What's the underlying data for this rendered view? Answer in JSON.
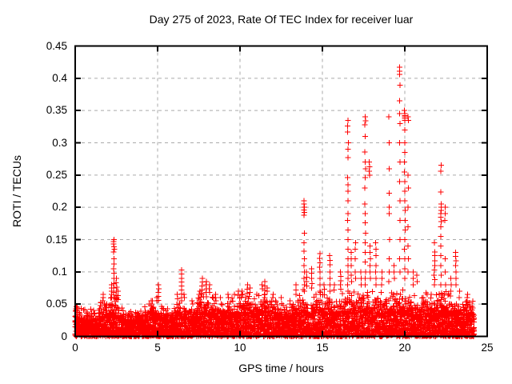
{
  "chart_data": {
    "type": "scatter",
    "title": "Day 275 of 2023, Rate Of TEC Index for receiver luar",
    "xlabel": "GPS time / hours",
    "ylabel": "ROTI / TECUs",
    "xlim": [
      0,
      25
    ],
    "ylim": [
      0,
      0.45
    ],
    "xticks": [
      0,
      5,
      10,
      15,
      20,
      25
    ],
    "xtick_labels": [
      "0",
      "5",
      "10",
      "15",
      "20",
      "25"
    ],
    "yticks": [
      0,
      0.05,
      0.1,
      0.15,
      0.2,
      0.25,
      0.3,
      0.35,
      0.4,
      0.45
    ],
    "ytick_labels": [
      "0",
      "0.05",
      "0.1",
      "0.15",
      "0.2",
      "0.25",
      "0.3",
      "0.35",
      "0.4",
      "0.45"
    ],
    "grid": "dashed gray at major ticks, both axes",
    "legend": "none",
    "marker": "plus",
    "marker_color": "#ff0000",
    "series_name": "ROTI",
    "time_range_h": [
      0,
      24.2
    ],
    "max_value": 0.417,
    "max_value_time_h": 19.7,
    "baseline_band": {
      "t_start": 0,
      "t_step": 0.25,
      "top": [
        0.04,
        0.036,
        0.034,
        0.033,
        0.035,
        0.038,
        0.042,
        0.046,
        0.05,
        0.055,
        0.05,
        0.042,
        0.036,
        0.033,
        0.032,
        0.033,
        0.035,
        0.038,
        0.043,
        0.047,
        0.047,
        0.04,
        0.036,
        0.035,
        0.038,
        0.045,
        0.046,
        0.042,
        0.04,
        0.046,
        0.052,
        0.055,
        0.056,
        0.052,
        0.047,
        0.043,
        0.043,
        0.047,
        0.049,
        0.047,
        0.051,
        0.056,
        0.056,
        0.052,
        0.052,
        0.056,
        0.06,
        0.056,
        0.048,
        0.044,
        0.043,
        0.041,
        0.044,
        0.048,
        0.056,
        0.06,
        0.056,
        0.052,
        0.056,
        0.06,
        0.052,
        0.056,
        0.056,
        0.048,
        0.052,
        0.056,
        0.06,
        0.056,
        0.056,
        0.06,
        0.06,
        0.056,
        0.056,
        0.06,
        0.056,
        0.052,
        0.052,
        0.056,
        0.06,
        0.06,
        0.06,
        0.056,
        0.052,
        0.048,
        0.052,
        0.056,
        0.052,
        0.056,
        0.056,
        0.06,
        0.056,
        0.052,
        0.052,
        0.047,
        0.043,
        0.052,
        0.047,
        0.045
      ]
    },
    "spike_columns": [
      {
        "t": 0.05,
        "ys": [
          0.046,
          0.043,
          0.04
        ]
      },
      {
        "t": 1.55,
        "ys": [
          0.052,
          0.048
        ]
      },
      {
        "t": 1.7,
        "ys": [
          0.065,
          0.06,
          0.055
        ]
      },
      {
        "t": 2.2,
        "ys": [
          0.08,
          0.075,
          0.07,
          0.065,
          0.06
        ]
      },
      {
        "t": 2.35,
        "ys": [
          0.15,
          0.147,
          0.143,
          0.139,
          0.135,
          0.131,
          0.12,
          0.112,
          0.105,
          0.098,
          0.09,
          0.082,
          0.075,
          0.068,
          0.06
        ]
      },
      {
        "t": 2.5,
        "ys": [
          0.09,
          0.083,
          0.076,
          0.07,
          0.064,
          0.058
        ]
      },
      {
        "t": 2.6,
        "ys": [
          0.07,
          0.063,
          0.057
        ]
      },
      {
        "t": 4.6,
        "ys": [
          0.055,
          0.05
        ]
      },
      {
        "t": 4.95,
        "ys": [
          0.06,
          0.055
        ]
      },
      {
        "t": 5.05,
        "ys": [
          0.08,
          0.074,
          0.068,
          0.062,
          0.056
        ]
      },
      {
        "t": 6.2,
        "ys": [
          0.065,
          0.058
        ]
      },
      {
        "t": 6.45,
        "ys": [
          0.103,
          0.097,
          0.09,
          0.084,
          0.078,
          0.072,
          0.066,
          0.06,
          0.055
        ]
      },
      {
        "t": 6.6,
        "ys": [
          0.065,
          0.06
        ]
      },
      {
        "t": 7.1,
        "ys": [
          0.055
        ]
      },
      {
        "t": 7.55,
        "ys": [
          0.07,
          0.065
        ]
      },
      {
        "t": 7.7,
        "ys": [
          0.09,
          0.084,
          0.078,
          0.072,
          0.066
        ]
      },
      {
        "t": 7.95,
        "ys": [
          0.085,
          0.08,
          0.074,
          0.068
        ]
      },
      {
        "t": 8.15,
        "ys": [
          0.08,
          0.074,
          0.068
        ]
      },
      {
        "t": 8.5,
        "ys": [
          0.065,
          0.06
        ]
      },
      {
        "t": 8.8,
        "ys": [
          0.06
        ]
      },
      {
        "t": 9.3,
        "ys": [
          0.065,
          0.06
        ]
      },
      {
        "t": 9.65,
        "ys": [
          0.065
        ]
      },
      {
        "t": 9.9,
        "ys": [
          0.07,
          0.064
        ]
      },
      {
        "t": 10.1,
        "ys": [
          0.07,
          0.065
        ]
      },
      {
        "t": 10.45,
        "ys": [
          0.08,
          0.073,
          0.067
        ]
      },
      {
        "t": 10.6,
        "ys": [
          0.075,
          0.068
        ]
      },
      {
        "t": 11.0,
        "ys": [
          0.065
        ]
      },
      {
        "t": 11.35,
        "ys": [
          0.08,
          0.074
        ]
      },
      {
        "t": 11.5,
        "ys": [
          0.085,
          0.078,
          0.071,
          0.065
        ]
      },
      {
        "t": 11.65,
        "ys": [
          0.075,
          0.07
        ]
      },
      {
        "t": 12.0,
        "ys": [
          0.065,
          0.06
        ]
      },
      {
        "t": 12.5,
        "ys": [
          0.06
        ]
      },
      {
        "t": 13.4,
        "ys": [
          0.08,
          0.072,
          0.065
        ]
      },
      {
        "t": 13.9,
        "ys": [
          0.21,
          0.205,
          0.2,
          0.196,
          0.192,
          0.188,
          0.16,
          0.145,
          0.132,
          0.12,
          0.11,
          0.1,
          0.09,
          0.08,
          0.07
        ]
      },
      {
        "t": 14.05,
        "ys": [
          0.1,
          0.092,
          0.085,
          0.078
        ]
      },
      {
        "t": 14.35,
        "ys": [
          0.105,
          0.098,
          0.09,
          0.082,
          0.075
        ]
      },
      {
        "t": 14.85,
        "ys": [
          0.128,
          0.121,
          0.114,
          0.107,
          0.1,
          0.09,
          0.08,
          0.07
        ]
      },
      {
        "t": 15.1,
        "ys": [
          0.08,
          0.073
        ]
      },
      {
        "t": 15.45,
        "ys": [
          0.125,
          0.118,
          0.111,
          0.1,
          0.09,
          0.08,
          0.07
        ]
      },
      {
        "t": 15.7,
        "ys": [
          0.08,
          0.072
        ]
      },
      {
        "t": 16.1,
        "ys": [
          0.1,
          0.093,
          0.086,
          0.08,
          0.073
        ]
      },
      {
        "t": 16.55,
        "ys": [
          0.335,
          0.326,
          0.317,
          0.3,
          0.29,
          0.277,
          0.246,
          0.235,
          0.225,
          0.21,
          0.19,
          0.18,
          0.165,
          0.15,
          0.135,
          0.12,
          0.11,
          0.1,
          0.09,
          0.08,
          0.07
        ]
      },
      {
        "t": 16.75,
        "ys": [
          0.13,
          0.12,
          0.11,
          0.095,
          0.085
        ]
      },
      {
        "t": 17.0,
        "ys": [
          0.145,
          0.135,
          0.12,
          0.1,
          0.09
        ]
      },
      {
        "t": 17.35,
        "ys": [
          0.1,
          0.09,
          0.08
        ]
      },
      {
        "t": 17.6,
        "ys": [
          0.34,
          0.334,
          0.328,
          0.31,
          0.286,
          0.27,
          0.26,
          0.246,
          0.23,
          0.205,
          0.19,
          0.176,
          0.16,
          0.145,
          0.13,
          0.115,
          0.1,
          0.09,
          0.08
        ]
      },
      {
        "t": 17.85,
        "ys": [
          0.27,
          0.263,
          0.256,
          0.25
        ]
      },
      {
        "t": 17.9,
        "ys": [
          0.14,
          0.13,
          0.12,
          0.11,
          0.1,
          0.09
        ]
      },
      {
        "t": 18.25,
        "ys": [
          0.145,
          0.135,
          0.125,
          0.11,
          0.1,
          0.09,
          0.08
        ]
      },
      {
        "t": 18.6,
        "ys": [
          0.1,
          0.09,
          0.08
        ]
      },
      {
        "t": 19.05,
        "ys": [
          0.34,
          0.3,
          0.26,
          0.222,
          0.2,
          0.19,
          0.15,
          0.12,
          0.1,
          0.085
        ]
      },
      {
        "t": 19.35,
        "ys": [
          0.11,
          0.1,
          0.09
        ]
      },
      {
        "t": 19.7,
        "ys": [
          0.417,
          0.411,
          0.406,
          0.389,
          0.365,
          0.345,
          0.33,
          0.3,
          0.27,
          0.24,
          0.21,
          0.18,
          0.15,
          0.12,
          0.1
        ]
      },
      {
        "t": 20.0,
        "ys": [
          0.35,
          0.345,
          0.342,
          0.34,
          0.338,
          0.335,
          0.32,
          0.3,
          0.285,
          0.27,
          0.255,
          0.24,
          0.225,
          0.21,
          0.195,
          0.18,
          0.165,
          0.15,
          0.135,
          0.12,
          0.105,
          0.09
        ]
      },
      {
        "t": 20.2,
        "ys": [
          0.34,
          0.335,
          0.25,
          0.23,
          0.2,
          0.17,
          0.14,
          0.12,
          0.1
        ]
      },
      {
        "t": 20.5,
        "ys": [
          0.1,
          0.09,
          0.08
        ]
      },
      {
        "t": 20.75,
        "ys": [
          0.095,
          0.085
        ]
      },
      {
        "t": 21.1,
        "ys": [
          0.06
        ]
      },
      {
        "t": 21.35,
        "ys": [
          0.065
        ]
      },
      {
        "t": 21.8,
        "ys": [
          0.145,
          0.131,
          0.125,
          0.117,
          0.11,
          0.103,
          0.095,
          0.088,
          0.08
        ]
      },
      {
        "t": 22.2,
        "ys": [
          0.265,
          0.256,
          0.224,
          0.205,
          0.2,
          0.195,
          0.19,
          0.185,
          0.178,
          0.17,
          0.155,
          0.14,
          0.125,
          0.11,
          0.095,
          0.08
        ]
      },
      {
        "t": 22.45,
        "ys": [
          0.2,
          0.19,
          0.18,
          0.12,
          0.1,
          0.08
        ]
      },
      {
        "t": 22.8,
        "ys": [
          0.09,
          0.08,
          0.07
        ]
      },
      {
        "t": 23.1,
        "ys": [
          0.13,
          0.124,
          0.117,
          0.11,
          0.1,
          0.09,
          0.08
        ]
      },
      {
        "t": 23.3,
        "ys": [
          0.07,
          0.06
        ]
      },
      {
        "t": 23.8,
        "ys": [
          0.065,
          0.06,
          0.055
        ]
      }
    ]
  },
  "colors": {
    "marker": "#ff0000",
    "grid": "#aaaaaa",
    "frame": "#000000",
    "background": "#ffffff",
    "text": "#000000"
  }
}
